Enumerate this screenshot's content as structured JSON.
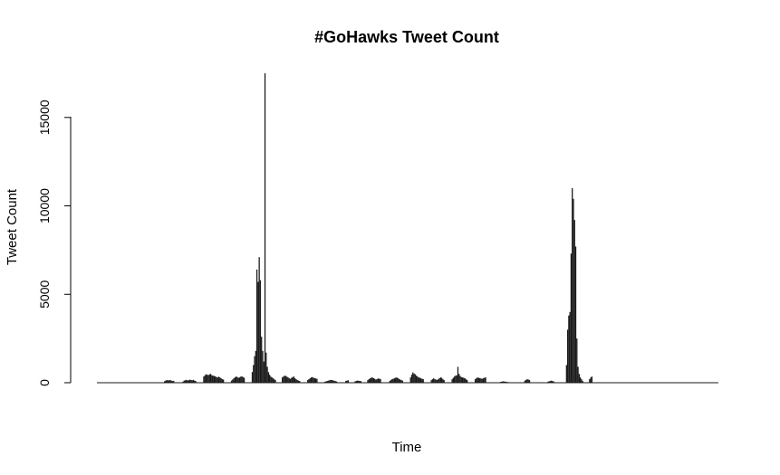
{
  "chart_data": {
    "type": "bar",
    "title": "#GoHawks Tweet Count",
    "xlabel": "Time",
    "ylabel": "Tweet Count",
    "y_ticks": [
      0,
      5000,
      10000,
      15000
    ],
    "y_tick_labels": [
      "0",
      "5000",
      "10000",
      "15000"
    ],
    "ylim": [
      0,
      17600
    ],
    "grid": false,
    "legend": "none",
    "bar_color": "#1a1a1a",
    "x_ticks_shown": false,
    "series": [
      {
        "description": "hourly tweet counts (estimated from image)",
        "values": [
          0,
          0,
          0,
          0,
          0,
          0,
          0,
          0,
          0,
          0,
          0,
          0,
          0,
          0,
          0,
          0,
          0,
          0,
          0,
          0,
          0,
          0,
          0,
          0,
          0,
          0,
          0,
          0,
          0,
          0,
          0,
          0,
          0,
          0,
          0,
          0,
          0,
          0,
          0,
          0,
          0,
          0,
          0,
          0,
          0,
          0,
          0,
          0,
          0,
          0,
          0,
          0,
          0,
          0,
          0,
          0,
          0,
          0,
          80,
          120,
          150,
          130,
          140,
          150,
          120,
          90,
          110,
          0,
          0,
          0,
          0,
          0,
          0,
          0,
          60,
          120,
          140,
          160,
          130,
          140,
          170,
          150,
          140,
          160,
          120,
          100,
          0,
          0,
          0,
          0,
          0,
          0,
          350,
          420,
          480,
          450,
          430,
          470,
          500,
          420,
          400,
          380,
          360,
          320,
          300,
          340,
          300,
          250,
          200,
          180,
          0,
          0,
          0,
          0,
          0,
          0,
          120,
          180,
          250,
          300,
          350,
          320,
          280,
          300,
          340,
          360,
          320,
          280,
          0,
          0,
          0,
          0,
          0,
          0,
          600,
          1000,
          1500,
          1800,
          6400,
          5700,
          7100,
          5800,
          2600,
          1800,
          1200,
          17500,
          1700,
          900,
          600,
          450,
          350,
          300,
          250,
          200,
          150,
          0,
          0,
          0,
          0,
          0,
          300,
          350,
          400,
          380,
          340,
          300,
          250,
          220,
          280,
          320,
          350,
          250,
          200,
          150,
          120,
          100,
          0,
          0,
          0,
          0,
          0,
          0,
          150,
          200,
          250,
          300,
          320,
          280,
          260,
          240,
          220,
          0,
          0,
          0,
          0,
          0,
          0,
          60,
          80,
          100,
          120,
          140,
          160,
          150,
          130,
          110,
          90,
          70,
          0,
          0,
          0,
          0,
          0,
          0,
          0,
          100,
          120,
          140,
          0,
          0,
          0,
          0,
          0,
          80,
          100,
          120,
          110,
          100,
          90,
          0,
          0,
          0,
          0,
          0,
          150,
          200,
          250,
          280,
          300,
          260,
          220,
          180,
          200,
          240,
          230,
          200,
          0,
          0,
          0,
          0,
          0,
          0,
          0,
          100,
          150,
          200,
          220,
          250,
          280,
          300,
          260,
          220,
          180,
          150,
          120,
          0,
          0,
          0,
          0,
          0,
          0,
          300,
          450,
          580,
          520,
          480,
          400,
          350,
          300,
          280,
          250,
          220,
          200,
          0,
          0,
          0,
          0,
          0,
          0,
          150,
          200,
          250,
          200,
          180,
          150,
          200,
          250,
          300,
          280,
          200,
          150,
          0,
          0,
          0,
          0,
          0,
          0,
          200,
          280,
          350,
          400,
          420,
          900,
          500,
          380,
          320,
          300,
          280,
          250,
          200,
          150,
          0,
          0,
          0,
          0,
          0,
          0,
          200,
          250,
          300,
          280,
          260,
          240,
          220,
          250,
          280,
          300,
          0,
          0,
          0,
          0,
          0,
          0,
          0,
          0,
          0,
          0,
          0,
          0,
          50,
          60,
          80,
          70,
          60,
          50,
          40,
          30,
          0,
          0,
          0,
          0,
          0,
          0,
          0,
          0,
          0,
          0,
          0,
          0,
          0,
          120,
          160,
          200,
          180,
          150,
          0,
          0,
          0,
          0,
          0,
          0,
          0,
          0,
          0,
          0,
          0,
          0,
          0,
          0,
          0,
          60,
          80,
          100,
          120,
          90,
          70,
          0,
          0,
          0,
          0,
          0,
          0,
          0,
          0,
          0,
          0,
          1000,
          3000,
          3800,
          4000,
          7300,
          11000,
          10400,
          9200,
          7700,
          2500,
          900,
          500,
          300,
          200,
          100,
          0,
          0,
          0,
          0,
          0,
          200,
          300,
          350,
          0,
          0,
          0,
          0,
          0,
          0,
          0,
          0,
          0,
          0,
          0,
          0,
          0,
          0,
          0,
          0,
          0,
          0,
          0,
          0,
          0,
          0,
          0,
          0,
          0,
          0,
          0,
          0,
          0,
          0,
          0,
          0,
          0,
          0,
          0,
          0,
          0,
          0,
          0,
          0,
          0,
          0,
          0,
          0,
          0,
          0,
          0,
          0,
          0,
          0,
          0,
          0,
          0,
          0,
          0,
          0,
          0,
          0,
          0,
          0,
          0,
          0,
          0,
          0,
          0,
          0,
          0,
          0,
          0,
          0,
          0,
          0,
          0,
          0,
          0,
          0,
          0,
          0,
          0,
          0,
          0,
          0,
          0,
          0,
          0,
          0,
          0,
          0,
          0,
          0,
          0,
          0,
          0,
          0,
          0,
          0,
          0,
          0,
          0,
          0,
          0,
          0,
          0,
          0,
          0,
          0,
          0,
          0,
          0
        ]
      }
    ]
  }
}
